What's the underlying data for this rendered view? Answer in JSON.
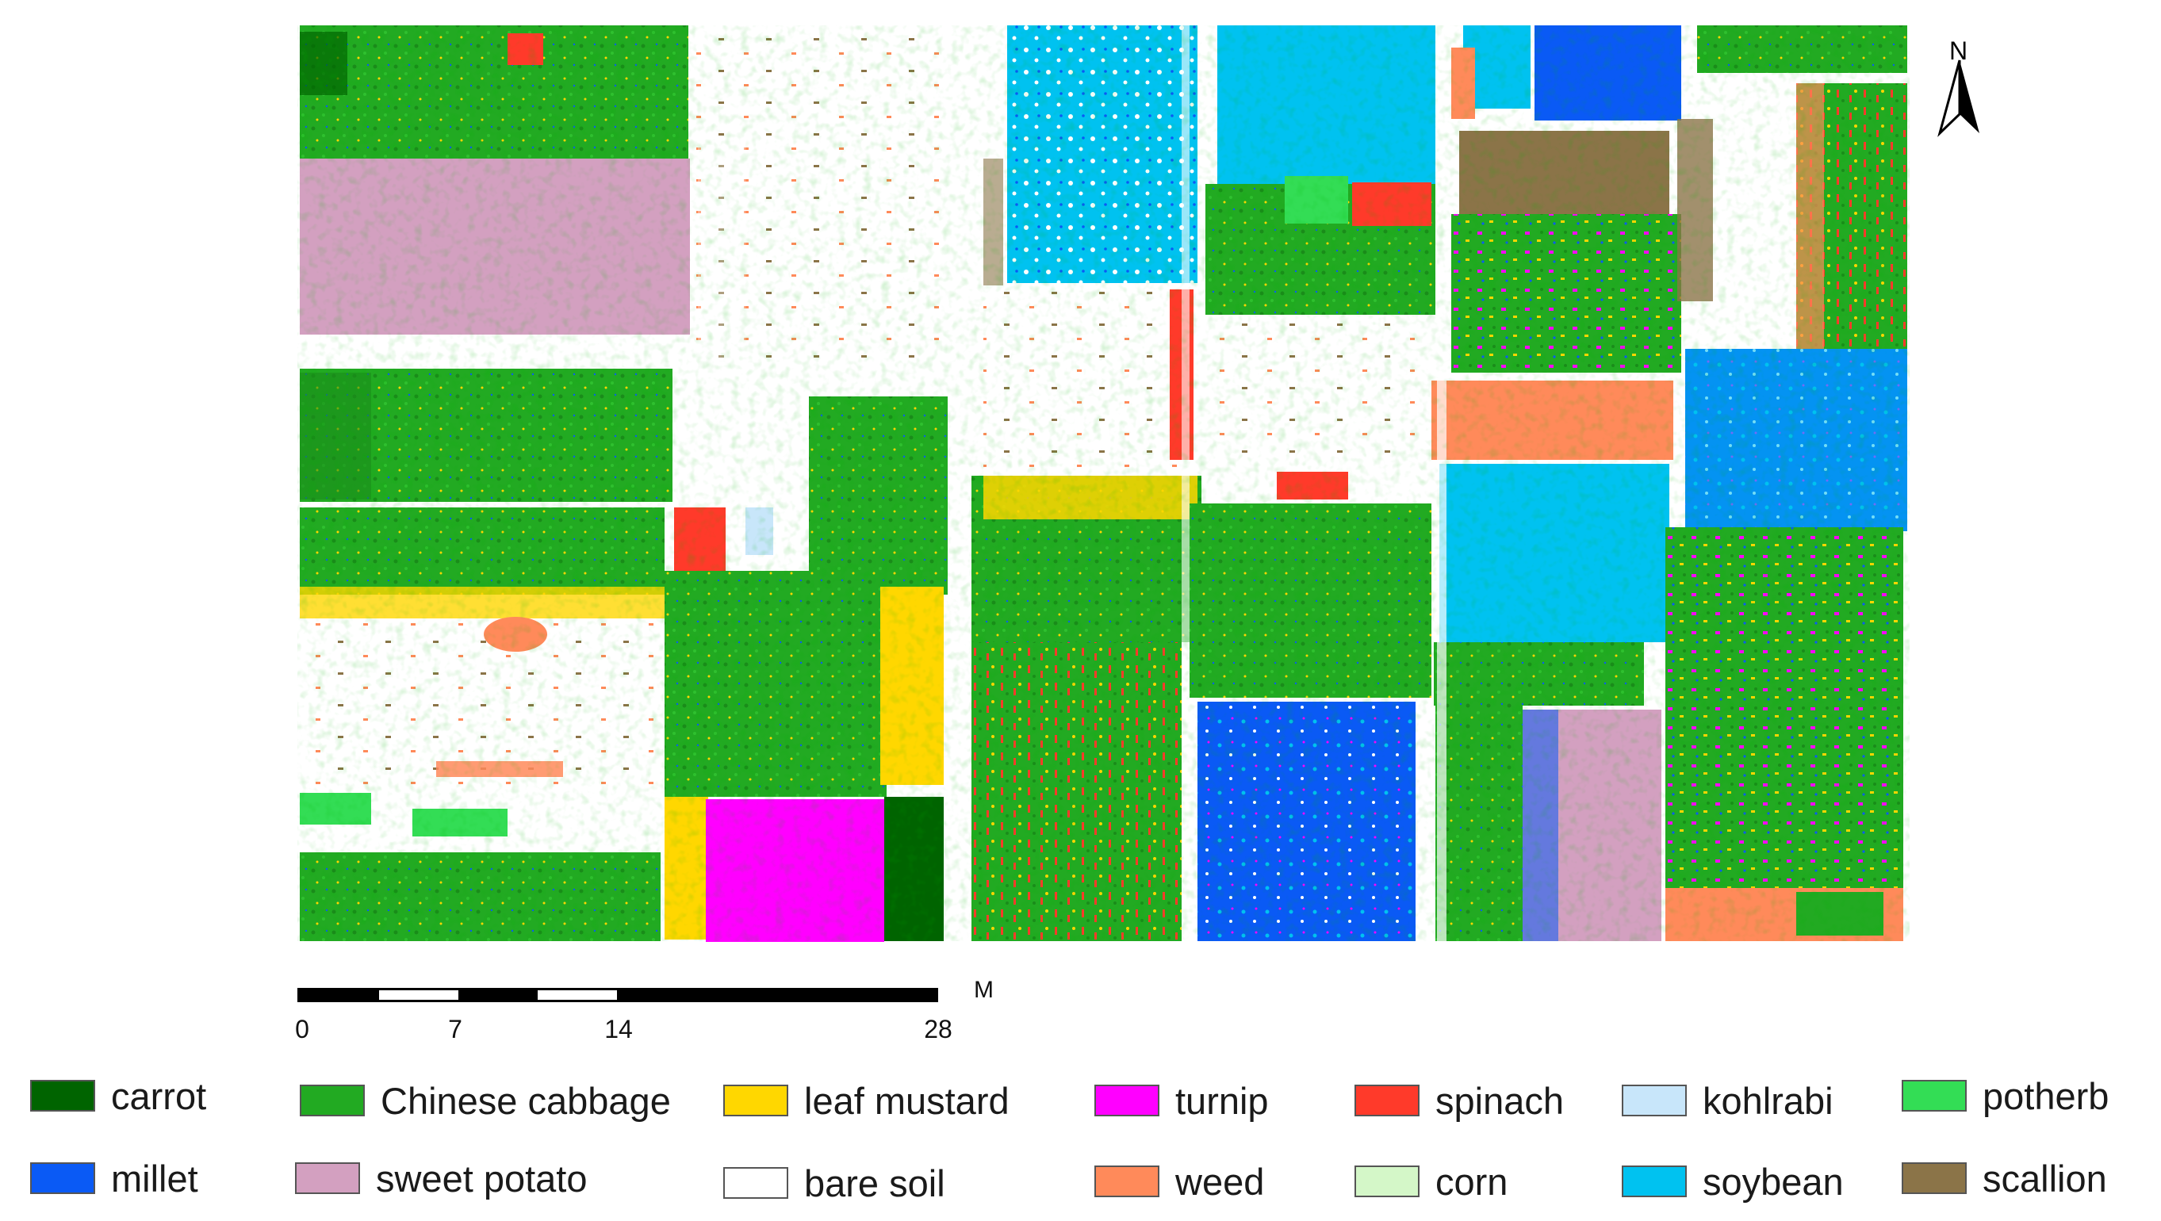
{
  "map": {
    "north_label": "N",
    "scale": {
      "unit": "M",
      "ticks": [
        "0",
        "7",
        "14",
        "28"
      ]
    }
  },
  "legend": {
    "items": [
      {
        "label": "carrot",
        "color": "#006400"
      },
      {
        "label": "Chinese cabbage",
        "color": "#22aa22"
      },
      {
        "label": "leaf mustard",
        "color": "#ffd700"
      },
      {
        "label": "turnip",
        "color": "#ff00ff"
      },
      {
        "label": "spinach",
        "color": "#ff3a2a"
      },
      {
        "label": "kohlrabi",
        "color": "#c8e6fa"
      },
      {
        "label": "potherb",
        "color": "#33dd55"
      },
      {
        "label": "millet",
        "color": "#0a5af5"
      },
      {
        "label": "sweet potato",
        "color": "#d3a0c0"
      },
      {
        "label": "bare soil",
        "color": "#ffffff"
      },
      {
        "label": "weed",
        "color": "#ff8a5a"
      },
      {
        "label": "corn",
        "color": "#d4f7c8"
      },
      {
        "label": "soybean",
        "color": "#00c2f0"
      },
      {
        "label": "scallion",
        "color": "#8b7448"
      }
    ]
  }
}
